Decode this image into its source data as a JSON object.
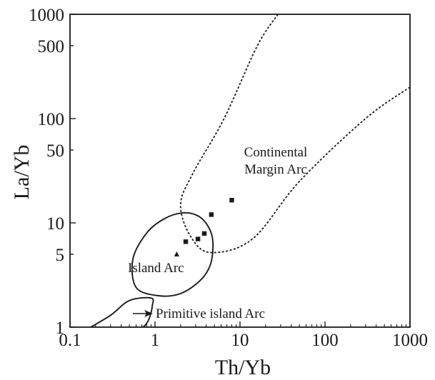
{
  "chart_data": {
    "type": "scatter",
    "title": "",
    "xlabel": "Th/Yb",
    "ylabel": "La/Yb",
    "xscale": "log",
    "yscale": "log",
    "xlim": [
      0.1,
      1000
    ],
    "ylim": [
      1,
      1000
    ],
    "grid": false,
    "x_ticks": [
      0.1,
      1,
      10,
      100,
      1000
    ],
    "x_tick_labels": [
      "0.1",
      "1",
      "10",
      "100",
      "1000"
    ],
    "y_ticks": [
      1,
      5,
      10,
      50,
      100,
      500,
      1000
    ],
    "y_tick_labels": [
      "1",
      "5",
      "10",
      "50",
      "100",
      "500",
      "1000"
    ],
    "regions": [
      {
        "name": "continental-margin-arc",
        "label_lines": [
          "Continental",
          "Margin Arc"
        ],
        "boundary": "dashed",
        "points": [
          [
            28,
            1000
          ],
          [
            16,
            500
          ],
          [
            6.5,
            100
          ],
          [
            2.8,
            30
          ],
          [
            2.0,
            15
          ],
          [
            2.6,
            7.5
          ],
          [
            4.5,
            5.2
          ],
          [
            14,
            7
          ],
          [
            50,
            25
          ],
          [
            300,
            100
          ],
          [
            1000,
            200
          ]
        ]
      },
      {
        "name": "island-arc",
        "label_lines": [
          "Island Arc"
        ],
        "boundary": "solid",
        "closed": true,
        "points": [
          [
            2.2,
            12.5
          ],
          [
            3.3,
            11.5
          ],
          [
            4.3,
            9
          ],
          [
            4.8,
            6.5
          ],
          [
            4.5,
            4
          ],
          [
            3.4,
            2.8
          ],
          [
            2.0,
            2.1
          ],
          [
            1.1,
            2.0
          ],
          [
            0.6,
            2.4
          ],
          [
            0.55,
            4.5
          ],
          [
            0.8,
            8
          ],
          [
            1.3,
            11
          ],
          [
            2.2,
            12.5
          ]
        ]
      },
      {
        "name": "primitive-island-arc",
        "label_lines": [
          "Primitive island Arc"
        ],
        "boundary": "solid",
        "points": [
          [
            0.15,
            0.93
          ],
          [
            0.3,
            1.3
          ],
          [
            0.5,
            1.8
          ],
          [
            0.9,
            1.9
          ],
          [
            0.93,
            1.6
          ],
          [
            0.85,
            1.2
          ],
          [
            0.72,
            1.0
          ],
          [
            0.5,
            0.9
          ],
          [
            0.38,
            0.93
          ]
        ]
      }
    ],
    "series": [
      {
        "marker": "square",
        "points": [
          [
            2.3,
            6.6
          ],
          [
            3.2,
            7.0
          ],
          [
            3.8,
            7.9
          ],
          [
            4.6,
            12
          ],
          [
            8.0,
            16.5
          ]
        ]
      },
      {
        "marker": "triangle",
        "points": [
          [
            1.8,
            5.0
          ]
        ]
      }
    ]
  },
  "colors": {
    "ink": "#1a1a1a",
    "background": "#ffffff"
  }
}
